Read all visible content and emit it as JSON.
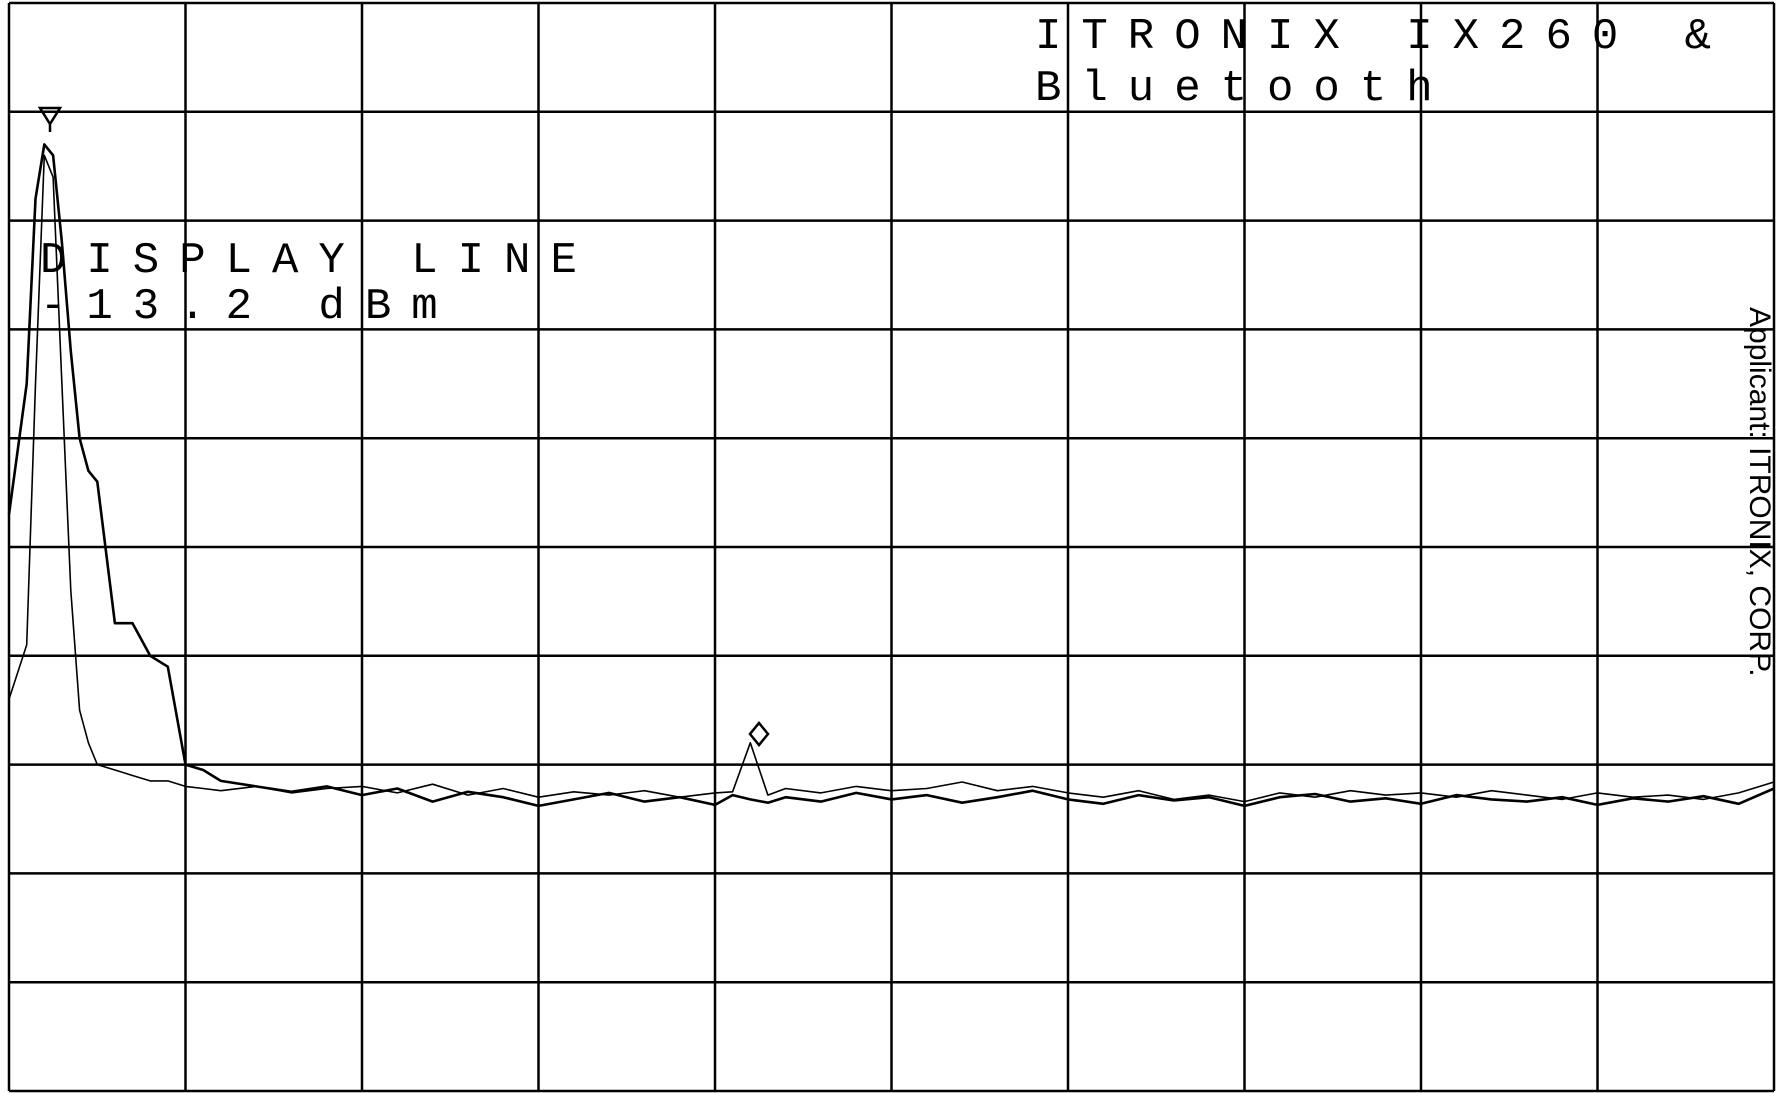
{
  "chart_data": {
    "type": "line",
    "title_lines": [
      "ITRONIX IX260 &",
      "Bluetooth"
    ],
    "annotation_lines": [
      "DISPLAY LINE",
      "-13.2 dBm"
    ],
    "side_note": "Applicant: ITRONIX, CORP.",
    "xlim": [
      0,
      10
    ],
    "ylim": [
      0,
      10
    ],
    "grid": true,
    "x": [
      0,
      0.1,
      0.15,
      0.2,
      0.25,
      0.3,
      0.35,
      0.4,
      0.45,
      0.5,
      0.6,
      0.7,
      0.8,
      0.9,
      1.0,
      1.1,
      1.2,
      1.4,
      1.6,
      1.8,
      2.0,
      2.2,
      2.4,
      2.6,
      2.8,
      3.0,
      3.2,
      3.4,
      3.6,
      3.8,
      4.0,
      4.1,
      4.2,
      4.3,
      4.4,
      4.6,
      4.8,
      5.0,
      5.2,
      5.4,
      5.6,
      5.8,
      6.0,
      6.2,
      6.4,
      6.6,
      6.8,
      7.0,
      7.2,
      7.4,
      7.6,
      7.8,
      8.0,
      8.2,
      8.4,
      8.6,
      8.8,
      9.0,
      9.2,
      9.4,
      9.6,
      9.8,
      10.0
    ],
    "series": [
      {
        "color": "#000000",
        "values": [
          5.3,
          6.5,
          8.2,
          8.7,
          8.6,
          7.8,
          6.8,
          6.0,
          5.7,
          5.6,
          4.3,
          4.3,
          4.0,
          3.9,
          3.0,
          2.95,
          2.85,
          2.8,
          2.75,
          2.8,
          2.72,
          2.78,
          2.66,
          2.75,
          2.7,
          2.62,
          2.68,
          2.74,
          2.66,
          2.7,
          2.63,
          2.72,
          2.68,
          2.65,
          2.7,
          2.66,
          2.74,
          2.68,
          2.72,
          2.65,
          2.7,
          2.76,
          2.68,
          2.64,
          2.72,
          2.67,
          2.7,
          2.62,
          2.7,
          2.73,
          2.66,
          2.69,
          2.64,
          2.72,
          2.68,
          2.66,
          2.7,
          2.63,
          2.69,
          2.66,
          2.71,
          2.64,
          2.78
        ]
      },
      {
        "color": "#000000",
        "values": [
          3.6,
          4.1,
          6.5,
          8.6,
          8.4,
          6.5,
          4.6,
          3.5,
          3.2,
          3.0,
          2.95,
          2.9,
          2.85,
          2.85,
          2.8,
          2.78,
          2.76,
          2.8,
          2.74,
          2.78,
          2.8,
          2.74,
          2.82,
          2.72,
          2.78,
          2.7,
          2.75,
          2.72,
          2.76,
          2.7,
          2.74,
          2.75,
          3.2,
          2.72,
          2.78,
          2.74,
          2.8,
          2.76,
          2.78,
          2.84,
          2.76,
          2.8,
          2.74,
          2.7,
          2.76,
          2.68,
          2.72,
          2.66,
          2.74,
          2.7,
          2.76,
          2.72,
          2.74,
          2.7,
          2.76,
          2.72,
          2.68,
          2.74,
          2.7,
          2.72,
          2.68,
          2.74,
          2.84
        ]
      }
    ]
  }
}
